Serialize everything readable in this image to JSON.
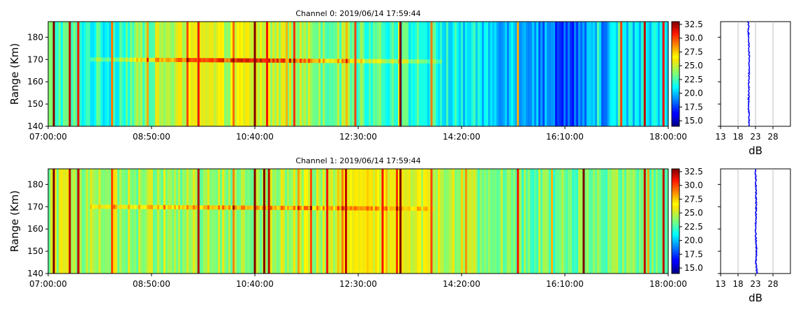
{
  "chart_data": [
    {
      "type": "heatmap",
      "title": "Channel 0: 2019/06/14 17:59:44",
      "ylabel": "Range (Km)",
      "xlim": [
        "07:00:00",
        "18:00:00"
      ],
      "xticks": [
        "07:00:00",
        "08:50:00",
        "10:40:00",
        "12:30:00",
        "14:20:00",
        "16:10:00",
        "18:00:00"
      ],
      "ylim": [
        140,
        187
      ],
      "yticks": [
        140,
        150,
        160,
        170,
        180
      ],
      "colorbar": {
        "range": [
          14,
          33
        ],
        "ticks": [
          "15.0",
          "17.5",
          "20.0",
          "22.5",
          "25.0",
          "27.5",
          "30.0",
          "32.5"
        ],
        "colormap": "jet"
      },
      "layer": {
        "range_km": 170,
        "start": "07:45:00",
        "end": "14:00:00",
        "peak_value": 29.5,
        "peak_time": "10:45:00"
      },
      "background_profile": [
        {
          "time": "07:00:00",
          "value": 23.0
        },
        {
          "time": "08:00:00",
          "value": 21.5
        },
        {
          "time": "09:00:00",
          "value": 24.5
        },
        {
          "time": "10:40:00",
          "value": 25.5
        },
        {
          "time": "12:30:00",
          "value": 23.0
        },
        {
          "time": "14:20:00",
          "value": 21.0
        },
        {
          "time": "15:30:00",
          "value": 20.0
        },
        {
          "time": "16:10:00",
          "value": 17.8
        },
        {
          "time": "17:00:00",
          "value": 20.0
        },
        {
          "time": "18:00:00",
          "value": 21.5
        }
      ],
      "spikes": [
        {
          "time": "07:06:00",
          "value": 33
        },
        {
          "time": "07:23:00",
          "value": 32
        },
        {
          "time": "07:32:00",
          "value": 31
        },
        {
          "time": "08:08:00",
          "value": 29
        },
        {
          "time": "09:40:00",
          "value": 31
        },
        {
          "time": "10:40:00",
          "value": 33
        },
        {
          "time": "10:53:00",
          "value": 31
        },
        {
          "time": "11:14:00",
          "value": 28
        },
        {
          "time": "12:27:00",
          "value": 30
        },
        {
          "time": "13:15:00",
          "value": 33
        },
        {
          "time": "13:48:00",
          "value": 29
        },
        {
          "time": "15:20:00",
          "value": 28
        },
        {
          "time": "17:10:00",
          "value": 30
        },
        {
          "time": "17:35:00",
          "value": 32
        },
        {
          "time": "17:55:00",
          "value": 31
        }
      ],
      "profile": {
        "xlabel": "dB",
        "xlim": [
          13,
          33
        ],
        "xticks": [
          13,
          18,
          23,
          28
        ],
        "points": [
          {
            "range_km": 140,
            "db": 21.2
          },
          {
            "range_km": 150,
            "db": 21.0
          },
          {
            "range_km": 160,
            "db": 21.1
          },
          {
            "range_km": 170,
            "db": 21.2
          },
          {
            "range_km": 180,
            "db": 21.0
          },
          {
            "range_km": 187,
            "db": 21.0
          }
        ]
      }
    },
    {
      "type": "heatmap",
      "title": "Channel 1: 2019/06/14 17:59:44",
      "ylabel": "Range (Km)",
      "xlim": [
        "07:00:00",
        "18:00:00"
      ],
      "xticks": [
        "07:00:00",
        "08:50:00",
        "10:40:00",
        "12:30:00",
        "14:20:00",
        "16:10:00",
        "18:00:00"
      ],
      "ylim": [
        140,
        187
      ],
      "yticks": [
        140,
        150,
        160,
        170,
        180
      ],
      "colorbar": {
        "range": [
          14,
          33
        ],
        "ticks": [
          "15.0",
          "17.5",
          "20.0",
          "22.5",
          "25.0",
          "27.5",
          "30.0",
          "32.5"
        ],
        "colormap": "jet"
      },
      "layer": {
        "range_km": 170,
        "start": "07:45:00",
        "end": "13:50:00",
        "peak_value": 28.0,
        "peak_time": "10:30:00"
      },
      "background_profile": [
        {
          "time": "07:00:00",
          "value": 24.5
        },
        {
          "time": "09:00:00",
          "value": 24.0
        },
        {
          "time": "10:40:00",
          "value": 24.5
        },
        {
          "time": "12:00:00",
          "value": 25.0
        },
        {
          "time": "12:30:00",
          "value": 26.5
        },
        {
          "time": "13:30:00",
          "value": 26.0
        },
        {
          "time": "14:20:00",
          "value": 24.5
        },
        {
          "time": "15:00:00",
          "value": 23.5
        },
        {
          "time": "16:10:00",
          "value": 23.5
        },
        {
          "time": "18:00:00",
          "value": 23.5
        }
      ],
      "spikes": [
        {
          "time": "07:06:00",
          "value": 33
        },
        {
          "time": "07:23:00",
          "value": 32
        },
        {
          "time": "07:32:00",
          "value": 32
        },
        {
          "time": "08:08:00",
          "value": 30
        },
        {
          "time": "09:40:00",
          "value": 32
        },
        {
          "time": "10:40:00",
          "value": 33
        },
        {
          "time": "10:50:00",
          "value": 33
        },
        {
          "time": "10:55:00",
          "value": 32
        },
        {
          "time": "11:57:00",
          "value": 31
        },
        {
          "time": "12:17:00",
          "value": 32
        },
        {
          "time": "12:56:00",
          "value": 31
        },
        {
          "time": "13:15:00",
          "value": 33
        },
        {
          "time": "13:48:00",
          "value": 30
        },
        {
          "time": "15:20:00",
          "value": 31
        },
        {
          "time": "16:30:00",
          "value": 33
        },
        {
          "time": "17:35:00",
          "value": 32
        },
        {
          "time": "17:55:00",
          "value": 32
        }
      ],
      "profile": {
        "xlabel": "dB",
        "xlim": [
          13,
          33
        ],
        "xticks": [
          13,
          18,
          23,
          28
        ],
        "points": [
          {
            "range_km": 140,
            "db": 23.5
          },
          {
            "range_km": 145,
            "db": 23.1
          },
          {
            "range_km": 150,
            "db": 23.3
          },
          {
            "range_km": 160,
            "db": 23.0
          },
          {
            "range_km": 170,
            "db": 23.2
          },
          {
            "range_km": 180,
            "db": 23.1
          },
          {
            "range_km": 187,
            "db": 23.0
          }
        ]
      }
    }
  ]
}
